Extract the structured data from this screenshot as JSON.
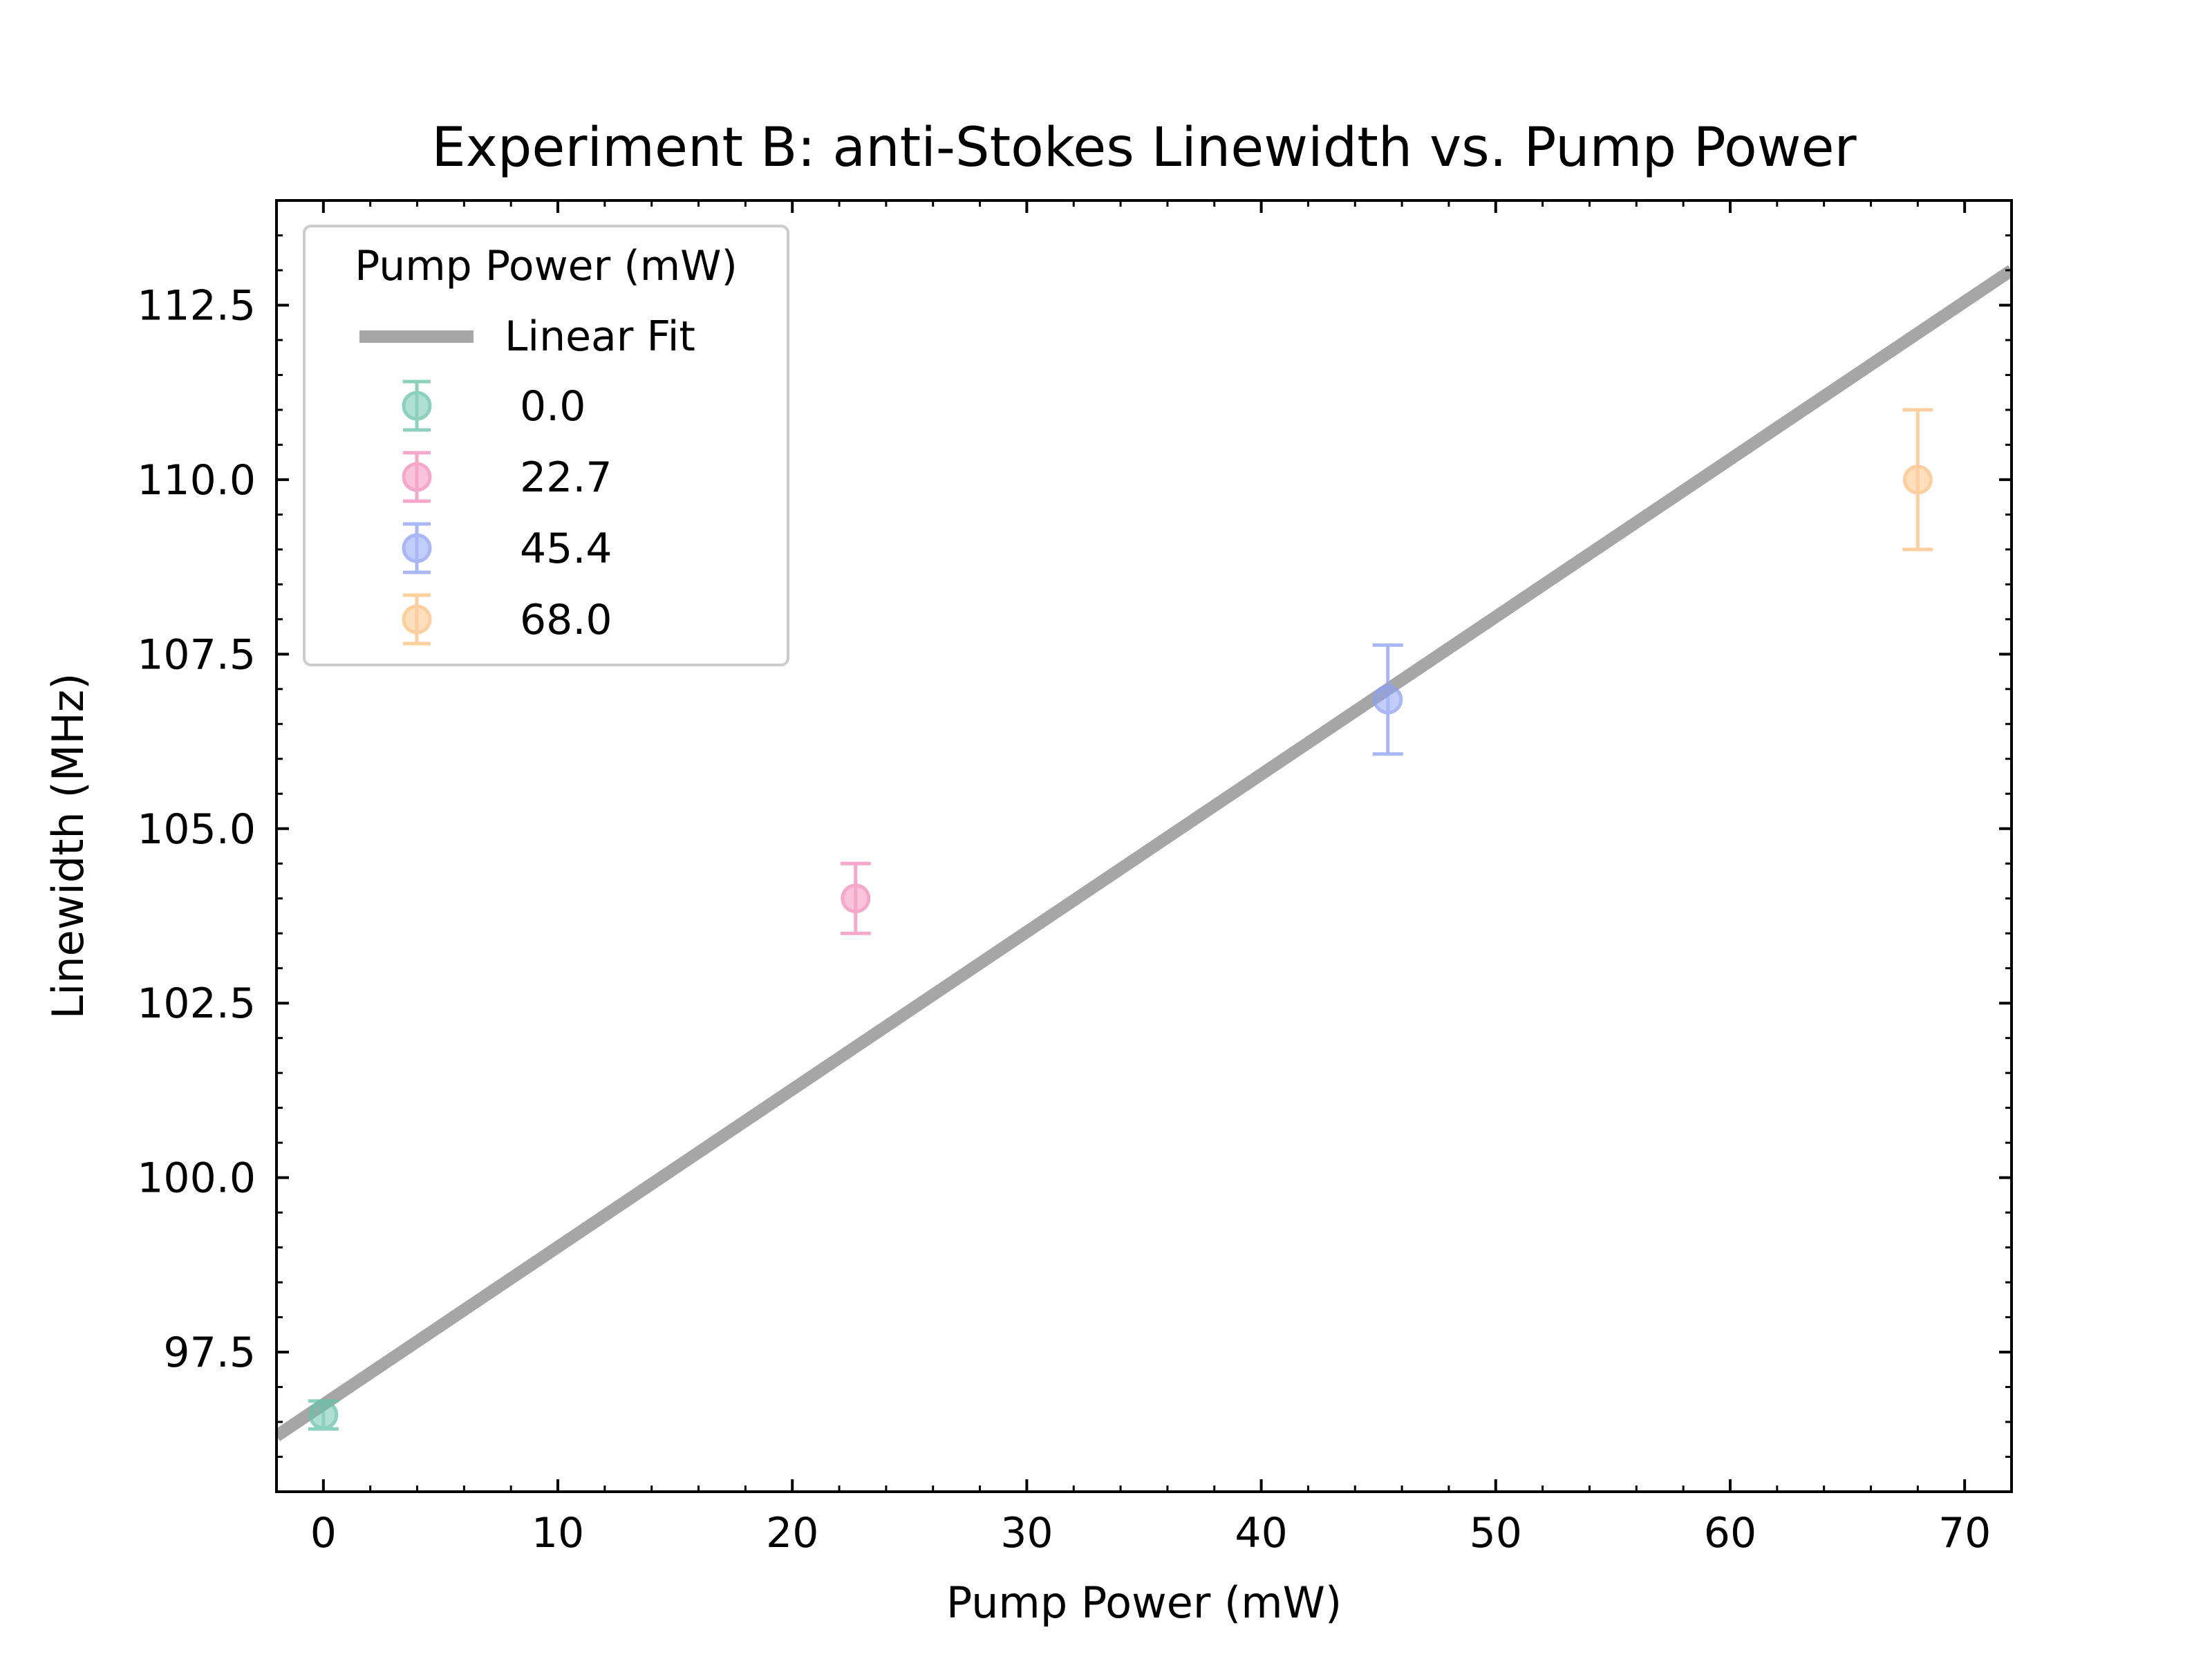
{
  "chart_data": {
    "type": "scatter",
    "title": "Experiment B: anti-Stokes Linewidth vs. Pump Power",
    "xlabel": "Pump Power (mW)",
    "ylabel": "Linewidth (MHz)",
    "xlim": [
      -2,
      72
    ],
    "ylim": [
      95.5,
      114
    ],
    "xticks": [
      0,
      10,
      20,
      30,
      40,
      50,
      60,
      70
    ],
    "yticks": [
      97.5,
      100.0,
      102.5,
      105.0,
      107.5,
      110.0,
      112.5
    ],
    "xtick_labels": [
      "0",
      "10",
      "20",
      "30",
      "40",
      "50",
      "60",
      "70"
    ],
    "ytick_labels": [
      "97.5",
      "100.0",
      "102.5",
      "105.0",
      "107.5",
      "110.0",
      "112.5"
    ],
    "legend": {
      "title": "Pump Power (mW)",
      "placement": "upper-left",
      "fit_label": "Linear Fit"
    },
    "fit": {
      "slope": 0.2257,
      "intercept": 96.75,
      "color": "#a6a6a6"
    },
    "series": [
      {
        "name": "0.0",
        "x": 0.0,
        "y": 96.6,
        "yerr": 0.2,
        "color": "#66c2a5"
      },
      {
        "name": "22.7",
        "x": 22.7,
        "y": 104.0,
        "yerr": 0.5,
        "color": "#f28cb9"
      },
      {
        "name": "45.4",
        "x": 45.4,
        "y": 106.85,
        "yerr": 0.78,
        "color": "#8da0f5"
      },
      {
        "name": "68.0",
        "x": 68.0,
        "y": 110.0,
        "yerr": 1.0,
        "color": "#fdbf80"
      }
    ]
  }
}
